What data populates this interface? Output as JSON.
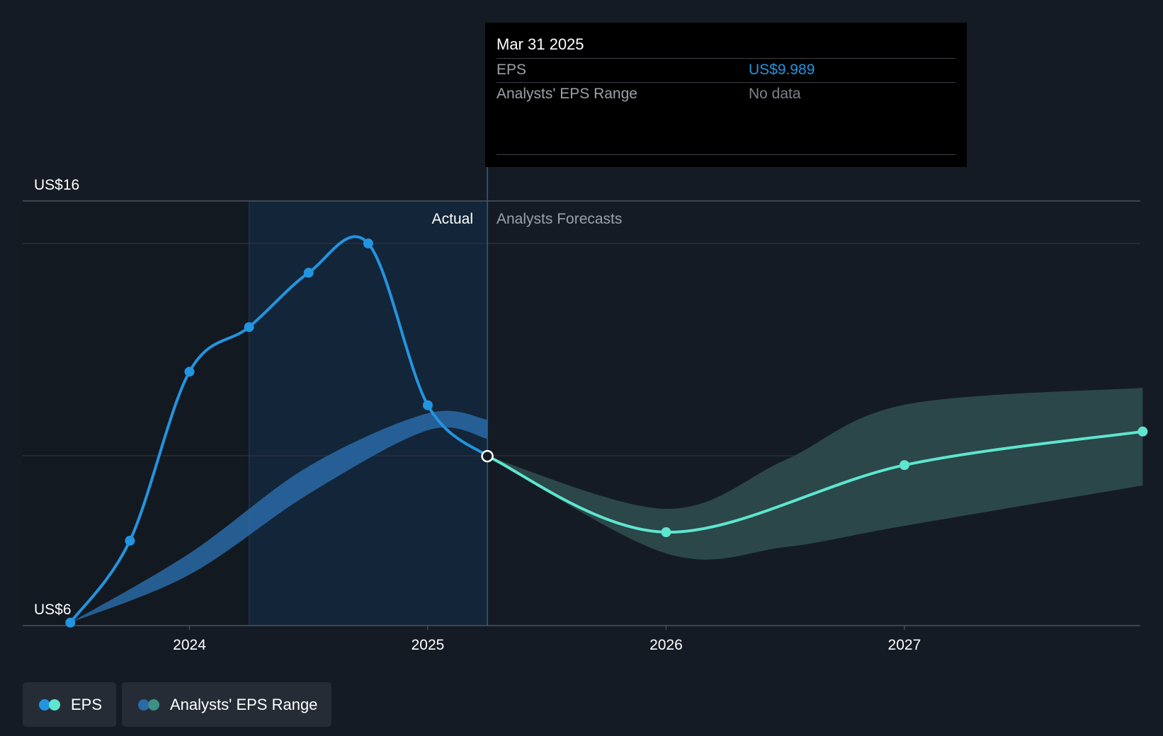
{
  "chart_data": {
    "type": "line",
    "title": "",
    "xlabel": "",
    "ylabel": "",
    "ylim": [
      6,
      16
    ],
    "y_tick_labels": [
      "US$16",
      "US$6"
    ],
    "x_ticks": [
      {
        "label": "2024",
        "value": 2024.0
      },
      {
        "label": "2025",
        "value": 2025.0
      },
      {
        "label": "2026",
        "value": 2026.0
      },
      {
        "label": "2027",
        "value": 2027.0
      }
    ],
    "xlim": [
      2023.3,
      2027.99
    ],
    "past_region_start": 2024.25,
    "divider_x": 2025.25,
    "region_labels": {
      "actual": "Actual",
      "forecast": "Analysts Forecasts"
    },
    "series": [
      {
        "name": "EPS",
        "kind": "actual",
        "color": "#2394df",
        "x": [
          2023.5,
          2023.75,
          2024.0,
          2024.25,
          2024.5,
          2024.75,
          2025.0,
          2025.25
        ],
        "y": [
          6.07,
          8.0,
          11.98,
          13.03,
          14.31,
          15.0,
          11.19,
          9.99
        ]
      },
      {
        "name": "EPS Forecast",
        "kind": "forecast",
        "color": "#5ee6cf",
        "x": [
          2025.25,
          2026.0,
          2027.0,
          2028.0
        ],
        "y": [
          9.99,
          8.2,
          9.78,
          10.57
        ]
      }
    ],
    "past_range_band": {
      "color": "#2a6aa6",
      "x": [
        2023.5,
        2024.0,
        2024.5,
        2025.0,
        2025.25
      ],
      "upper": [
        6.07,
        7.7,
        9.75,
        11.0,
        10.85
      ],
      "lower": [
        6.07,
        7.2,
        9.1,
        10.6,
        10.4
      ]
    },
    "forecast_range_band": {
      "color": "#2c4a4d",
      "x": [
        2025.25,
        2026.0,
        2026.5,
        2027.0,
        2028.0
      ],
      "upper": [
        9.99,
        8.75,
        9.9,
        11.2,
        11.6
      ],
      "lower": [
        9.99,
        7.7,
        7.85,
        8.35,
        9.3
      ]
    }
  },
  "tooltip": {
    "date": "Mar 31 2025",
    "rows": [
      {
        "label": "EPS",
        "value": "US$9.989",
        "value_color": "#2394df"
      },
      {
        "label": "Analysts' EPS Range",
        "value": "No data",
        "value_color": "#7d838b"
      }
    ]
  },
  "legend": {
    "eps_label": "EPS",
    "range_label": "Analysts' EPS Range",
    "eps_colors": [
      "#2394df",
      "#5ee6cf"
    ],
    "range_colors": [
      "#2a6aa6",
      "#3e8f86"
    ]
  }
}
